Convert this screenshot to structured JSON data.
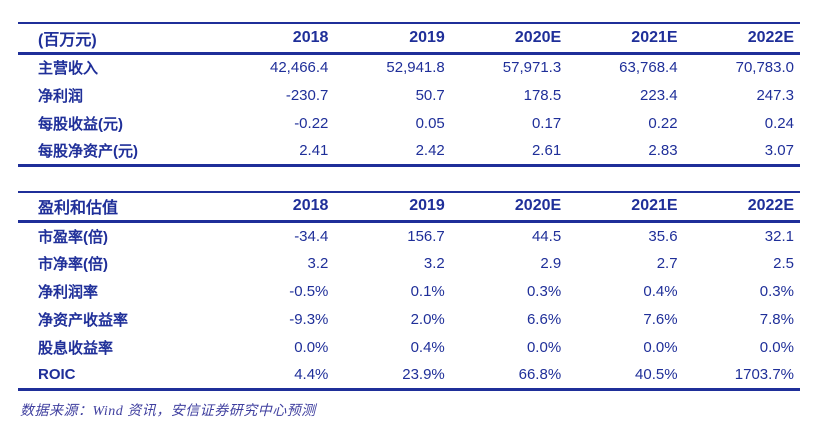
{
  "colors": {
    "table_navy": "#1f2f99",
    "footer_blue": "#3f3f9f",
    "background": "#ffffff"
  },
  "tables": [
    {
      "name": "financial-summary",
      "header": [
        "(百万元)",
        "2018",
        "2019",
        "2020E",
        "2021E",
        "2022E"
      ],
      "rows": [
        [
          "主营收入",
          "42,466.4",
          "52,941.8",
          "57,971.3",
          "63,768.4",
          "70,783.0"
        ],
        [
          "净利润",
          "-230.7",
          "50.7",
          "178.5",
          "223.4",
          "247.3"
        ],
        [
          "每股收益(元)",
          "-0.22",
          "0.05",
          "0.17",
          "0.22",
          "0.24"
        ],
        [
          "每股净资产(元)",
          "2.41",
          "2.42",
          "2.61",
          "2.83",
          "3.07"
        ]
      ]
    },
    {
      "name": "profit-and-valuation",
      "header": [
        "盈利和估值",
        "2018",
        "2019",
        "2020E",
        "2021E",
        "2022E"
      ],
      "rows": [
        [
          "市盈率(倍)",
          "-34.4",
          "156.7",
          "44.5",
          "35.6",
          "32.1"
        ],
        [
          "市净率(倍)",
          "3.2",
          "3.2",
          "2.9",
          "2.7",
          "2.5"
        ],
        [
          "净利润率",
          "-0.5%",
          "0.1%",
          "0.3%",
          "0.4%",
          "0.3%"
        ],
        [
          "净资产收益率",
          "-9.3%",
          "2.0%",
          "6.6%",
          "7.6%",
          "7.8%"
        ],
        [
          "股息收益率",
          "0.0%",
          "0.4%",
          "0.0%",
          "0.0%",
          "0.0%"
        ],
        [
          "ROIC",
          "4.4%",
          "23.9%",
          "66.8%",
          "40.5%",
          "1703.7%"
        ]
      ]
    }
  ],
  "footer": {
    "source_note": "数据来源：Wind 资讯，安信证券研究中心预测"
  }
}
